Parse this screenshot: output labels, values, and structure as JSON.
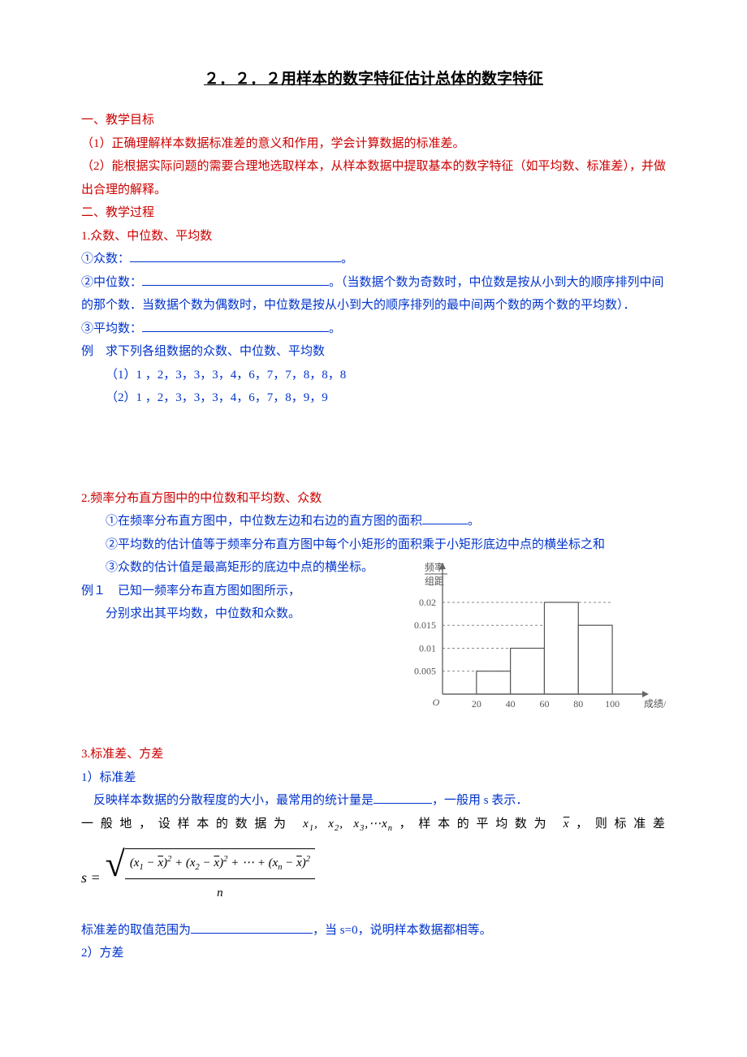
{
  "title": "２．２．２用样本的数字特征估计总体的数字特征",
  "sec1": {
    "h": "一、教学目标",
    "p1": "（1）正确理解样本数据标准差的意义和作用，学会计算数据的标准差。",
    "p2": "（2）能根据实际问题的需要合理地选取样本，从样本数据中提取基本的数字特征（如平均数、标准差），并做出合理的解释。"
  },
  "sec2": {
    "h": "二、教学过程",
    "s1": {
      "h": "1.众数、中位数、平均数",
      "l1_pre": "①众数：",
      "l1_post": "。",
      "l2_pre": "②中位数：",
      "l2_mid": "。（当数据个数为奇数时，中位数是按从小到大的顺序排列中间的那个数．当数据个数为偶数时，中位数是按从小到大的顺序排列的最中间两个数的两个数的平均数）．",
      "l3_pre": "③平均数：",
      "l3_post": "。",
      "ex": "例　求下列各组数据的众数、中位数、平均数",
      "ex1": "（1）1 ，2，3，3，3，4，6，7，7，8，8，8",
      "ex2": "（2）1 ，2，3，3，3，4，6，7，8，9，9"
    },
    "s2": {
      "h": "2.频率分布直方图中的中位数和平均数、众数",
      "l1_pre": "①在频率分布直方图中，中位数左边和右边的直方图的面积",
      "l1_post": "。",
      "l2": "②平均数的估计值等于频率分布直方图中每个小矩形的面积乘于小矩形底边中点的横坐标之和",
      "l3": "③众数的估计值是最高矩形的底边中点的横坐标。",
      "ex": "例１　已知一频率分布直方图如图所示，",
      "ex_sub": "分别求出其平均数，中位数和众数。",
      "chart": {
        "type": "histogram",
        "x_label": "成绩/分",
        "y_label": "频率/组距",
        "x_ticks": [
          0,
          20,
          40,
          60,
          80,
          100
        ],
        "y_ticks": [
          0.005,
          0.01,
          0.015,
          0.02
        ],
        "bars": [
          {
            "x0": 20,
            "x1": 40,
            "h": 0.005
          },
          {
            "x0": 40,
            "x1": 60,
            "h": 0.01
          },
          {
            "x0": 60,
            "x1": 80,
            "h": 0.02
          },
          {
            "x0": 80,
            "x1": 100,
            "h": 0.015
          }
        ],
        "axis_color": "#666666",
        "bar_stroke": "#555555",
        "bar_fill": "#ffffff",
        "dash_color": "#888888",
        "text_color": "#555555"
      }
    },
    "s3": {
      "h": "3.标准差、方差",
      "sub1": "1）标准差",
      "p1_pre": "　反映样本数据的分散程度的大小，最常用的统计量是",
      "p1_post": "，一般用 s 表示．",
      "p2_pre": "一般地，设样本的数据为 ",
      "p2_mid": "，样本的平均数为 ",
      "p2_post": "，则标准差",
      "formula": {
        "lhs": "s =",
        "terms": [
          "(x₁ − x̄)²",
          "(x₂ − x̄)²",
          "⋯",
          "(xₙ − x̄)²"
        ],
        "denom": "n"
      },
      "p3_pre": "标准差的取值范围为",
      "p3_post": "，当 s=0，说明样本数据都相等。",
      "sub2": "2）方差"
    }
  },
  "blanks": {
    "w_long": 260,
    "w_med": 230,
    "w_short": 56,
    "w_vshort": 72,
    "w_tiny": 150
  }
}
